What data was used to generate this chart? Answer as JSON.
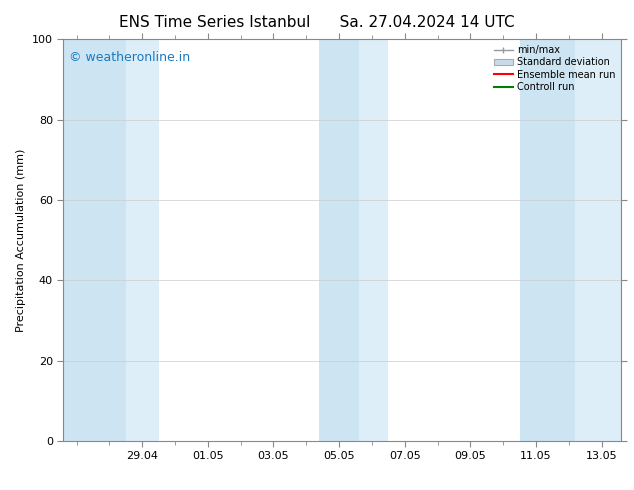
{
  "title_left": "ENS Time Series Istanbul",
  "title_right": "Sa. 27.04.2024 14 UTC",
  "ylabel": "Precipitation Accumulation (mm)",
  "ylim": [
    0,
    100
  ],
  "yticks": [
    0,
    20,
    40,
    60,
    80,
    100
  ],
  "xtick_labels": [
    "29.04",
    "01.05",
    "03.05",
    "05.05",
    "07.05",
    "09.05",
    "11.05",
    "13.05"
  ],
  "background_color": "#ffffff",
  "plot_bg_color": "#ffffff",
  "watermark_text": "© weatheronline.in",
  "watermark_color": "#1a7abf",
  "watermark_fontsize": 9,
  "title_fontsize": 11,
  "axis_fontsize": 8,
  "tick_fontsize": 8,
  "grid_color": "#cccccc",
  "shaded_dark_color": "#cde4f2",
  "shaded_light_color": "#deeef8",
  "legend_fontsize": 7,
  "minmax_color": "#999999",
  "std_face_color": "#c8dce8",
  "std_edge_color": "#aaaaaa",
  "ensemble_color": "#ff0000",
  "control_color": "#008000"
}
